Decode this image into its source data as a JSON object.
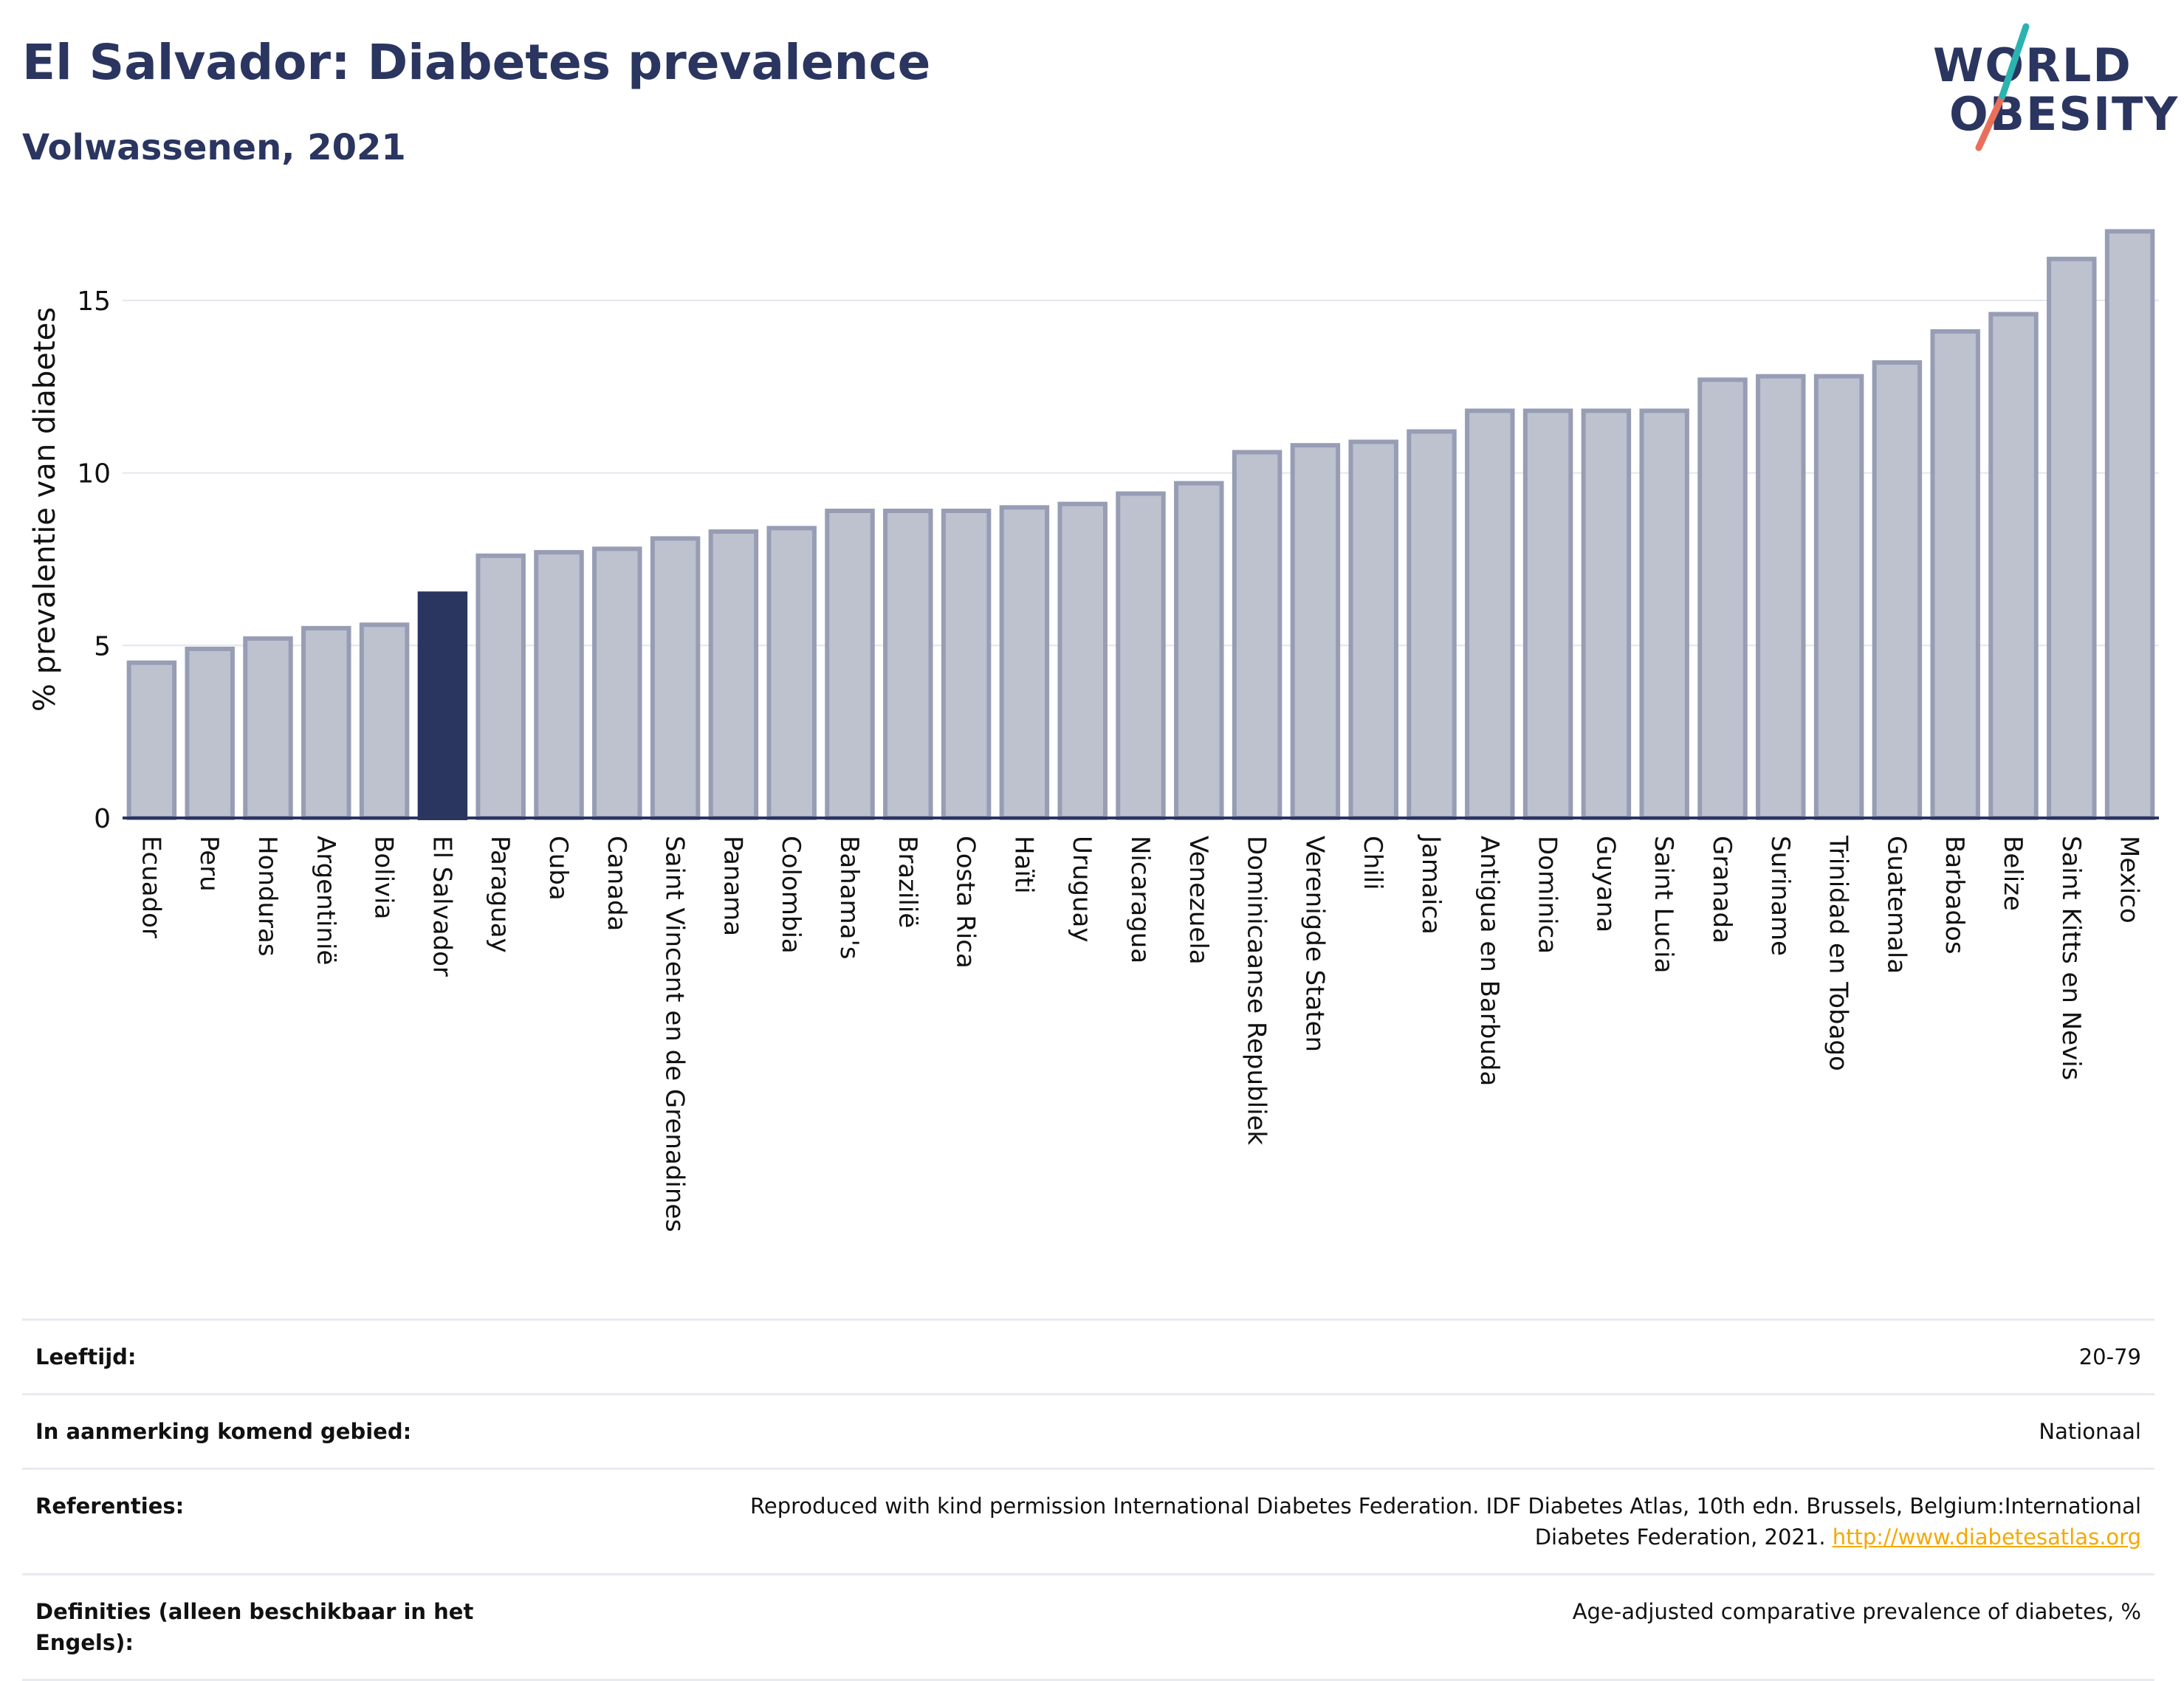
{
  "header": {
    "title": "El Salvador: Diabetes prevalence",
    "subtitle": "Volwassenen, 2021"
  },
  "logo": {
    "line1": "WORLD",
    "line2": "OBESITY"
  },
  "colors": {
    "bar": "#bec2cf",
    "bar_border": "#979db4",
    "highlight": "#2a3560",
    "grid": "#e4e6ee",
    "axis": "#2a3560"
  },
  "chart_data": {
    "type": "bar",
    "ylabel": "% prevalentie van diabetes",
    "xlabel": "",
    "ylim": [
      0,
      17.5
    ],
    "yticks": [
      0,
      5,
      10,
      15
    ],
    "grid": true,
    "highlight": "El Salvador",
    "categories": [
      "Ecuador",
      "Peru",
      "Honduras",
      "Argentinië",
      "Bolivia",
      "El Salvador",
      "Paraguay",
      "Cuba",
      "Canada",
      "Saint Vincent en de Grenadines",
      "Panama",
      "Colombia",
      "Bahama's",
      "Brazilië",
      "Costa Rica",
      "Haïti",
      "Uruguay",
      "Nicaragua",
      "Venezuela",
      "Dominicaanse Republiek",
      "Verenigde Staten",
      "Chili",
      "Jamaica",
      "Antigua en Barbuda",
      "Dominica",
      "Guyana",
      "Saint Lucia",
      "Granada",
      "Suriname",
      "Trinidad en Tobago",
      "Guatemala",
      "Barbados",
      "Belize",
      "Saint Kitts en Nevis",
      "Mexico"
    ],
    "values": [
      4.5,
      4.9,
      5.2,
      5.5,
      5.6,
      6.5,
      7.6,
      7.7,
      7.8,
      8.1,
      8.3,
      8.4,
      8.9,
      8.9,
      8.9,
      9.0,
      9.1,
      9.4,
      9.7,
      10.6,
      10.8,
      10.9,
      11.2,
      11.8,
      11.8,
      11.8,
      11.8,
      12.7,
      12.8,
      12.8,
      13.2,
      14.1,
      14.6,
      16.2,
      17.0
    ]
  },
  "info": {
    "rows": [
      {
        "label": "Leeftijd:",
        "value": "20-79"
      },
      {
        "label": "In aanmerking komend gebied:",
        "value": "Nationaal"
      },
      {
        "label": "Referenties:",
        "value": "Reproduced with kind permission International Diabetes Federation.  IDF Diabetes Atlas, 10th edn. Brussels, Belgium:International Diabetes Federation, 2021. ",
        "link": "http://www.diabetesatlas.org"
      },
      {
        "label": "Definities (alleen beschikbaar in het Engels):",
        "value": "Age-adjusted comparative prevalence of diabetes, %"
      }
    ]
  }
}
